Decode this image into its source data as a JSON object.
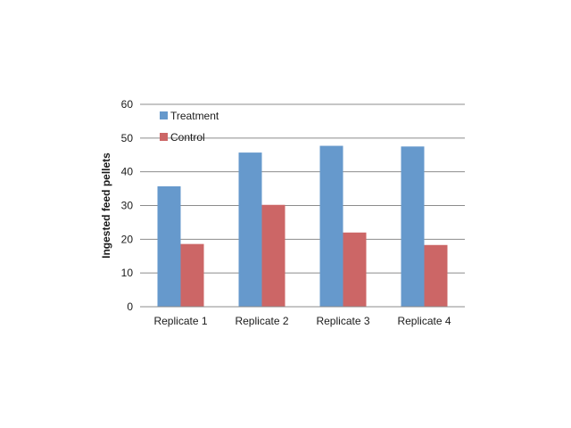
{
  "chart_data": {
    "type": "bar",
    "categories": [
      "Replicate 1",
      "Replicate 2",
      "Replicate 3",
      "Replicate 4"
    ],
    "series": [
      {
        "name": "Treatment",
        "values": [
          35.7,
          45.7,
          47.7,
          47.5
        ],
        "color": "#6699cc"
      },
      {
        "name": "Control",
        "values": [
          18.6,
          30.2,
          22.0,
          18.3
        ],
        "color": "#cc6666"
      }
    ],
    "title": "",
    "xlabel": "",
    "ylabel": "Ingested feed pellets",
    "ylim": [
      0,
      60
    ],
    "yticks": [
      0,
      10,
      20,
      30,
      40,
      50,
      60
    ],
    "grid": true,
    "legend_position": "top-left"
  }
}
